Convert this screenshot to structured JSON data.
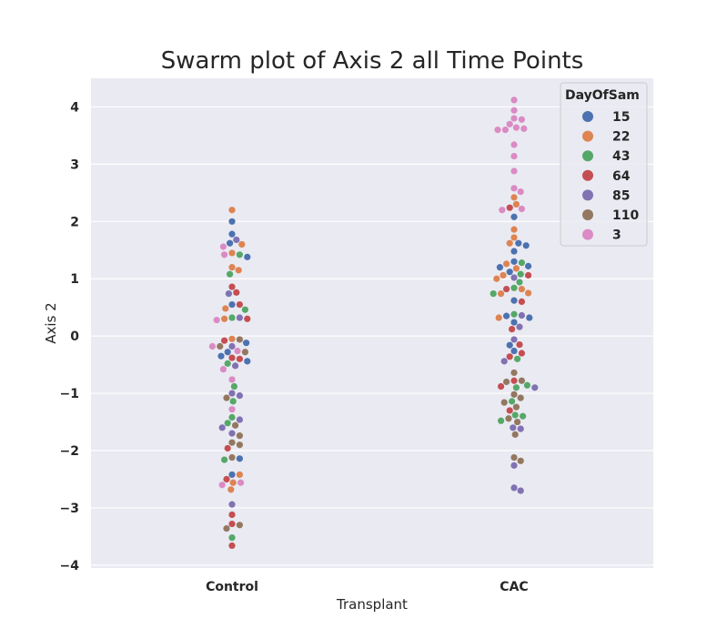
{
  "chart_data": {
    "type": "swarm",
    "title": "Swarm plot of Axis 2 all Time Points",
    "xlabel": "Transplant",
    "ylabel": "Axis 2",
    "categories": [
      "Control",
      "CAC"
    ],
    "ylim": [
      -4.05,
      4.5
    ],
    "yticks": [
      4,
      3,
      2,
      1,
      0,
      -1,
      -2,
      -3,
      -4
    ],
    "ytick_labels": [
      "4",
      "3",
      "2",
      "1",
      "0",
      "−1",
      "−2",
      "−3",
      "−4"
    ],
    "grid": true,
    "legend": {
      "title": "DayOfSam",
      "position": "top-right"
    },
    "series": [
      {
        "name": "15",
        "color": "#4c72b0",
        "Control": [
          2.0,
          1.78,
          1.62,
          1.38,
          0.55,
          -0.12,
          -0.28,
          -0.35,
          -0.44,
          -2.14,
          -2.42
        ],
        "CAC": [
          2.08,
          1.62,
          1.58,
          1.48,
          1.3,
          1.22,
          1.2,
          1.12,
          0.62,
          0.35,
          0.32,
          0.24,
          -0.16,
          -0.26
        ]
      },
      {
        "name": "22",
        "color": "#dd8452",
        "Control": [
          2.2,
          1.6,
          1.45,
          1.2,
          1.15,
          0.48,
          0.3,
          -0.05,
          -2.42,
          -2.56,
          -2.68
        ],
        "CAC": [
          2.42,
          2.3,
          1.86,
          1.72,
          1.62,
          1.26,
          1.18,
          1.06,
          1.0,
          0.82,
          0.75,
          0.74,
          0.32
        ]
      },
      {
        "name": "43",
        "color": "#55a868",
        "Control": [
          1.42,
          1.08,
          0.46,
          0.32,
          -0.48,
          -0.88,
          -1.14,
          -1.42,
          -1.52,
          -2.16,
          -3.52
        ],
        "CAC": [
          1.28,
          1.08,
          0.94,
          0.84,
          0.74,
          0.38,
          -0.4,
          -0.9,
          -0.86,
          -1.14,
          -1.38,
          -1.4,
          -1.48
        ]
      },
      {
        "name": "64",
        "color": "#c44e52",
        "Control": [
          0.86,
          0.76,
          0.55,
          0.3,
          -0.08,
          -0.38,
          -0.4,
          -1.96,
          -2.5,
          -3.12,
          -3.28,
          -3.66
        ],
        "CAC": [
          2.24,
          1.06,
          0.82,
          0.6,
          0.12,
          -0.15,
          -0.3,
          -0.36,
          -0.88,
          -0.78,
          -1.3
        ]
      },
      {
        "name": "85",
        "color": "#8172b2",
        "Control": [
          1.68,
          0.74,
          0.32,
          -0.18,
          -0.52,
          -1.0,
          -1.04,
          -1.46,
          -1.6,
          -1.7,
          -2.94
        ],
        "CAC": [
          1.02,
          0.36,
          0.16,
          -0.06,
          -0.44,
          -0.9,
          -1.6,
          -1.62,
          -2.26,
          -2.65,
          -2.7
        ]
      },
      {
        "name": "110",
        "color": "#937860",
        "Control": [
          -0.06,
          -0.18,
          -0.28,
          -1.08,
          -1.56,
          -1.74,
          -1.86,
          -1.9,
          -2.12,
          -3.3,
          -3.36
        ],
        "CAC": [
          -0.64,
          -0.78,
          -0.8,
          -1.02,
          -1.08,
          -1.16,
          -1.24,
          -1.44,
          -1.5,
          -1.72,
          -2.12,
          -2.18
        ]
      },
      {
        "name": "3",
        "color": "#da8bc3",
        "Control": [
          1.56,
          1.42,
          0.28,
          -0.18,
          -0.26,
          -0.58,
          -0.76,
          -1.28,
          -2.56,
          -2.6
        ],
        "CAC": [
          4.12,
          3.94,
          3.8,
          3.78,
          3.7,
          3.64,
          3.62,
          3.6,
          3.6,
          3.34,
          3.14,
          2.88,
          2.58,
          2.52,
          2.2,
          2.22
        ]
      }
    ]
  }
}
